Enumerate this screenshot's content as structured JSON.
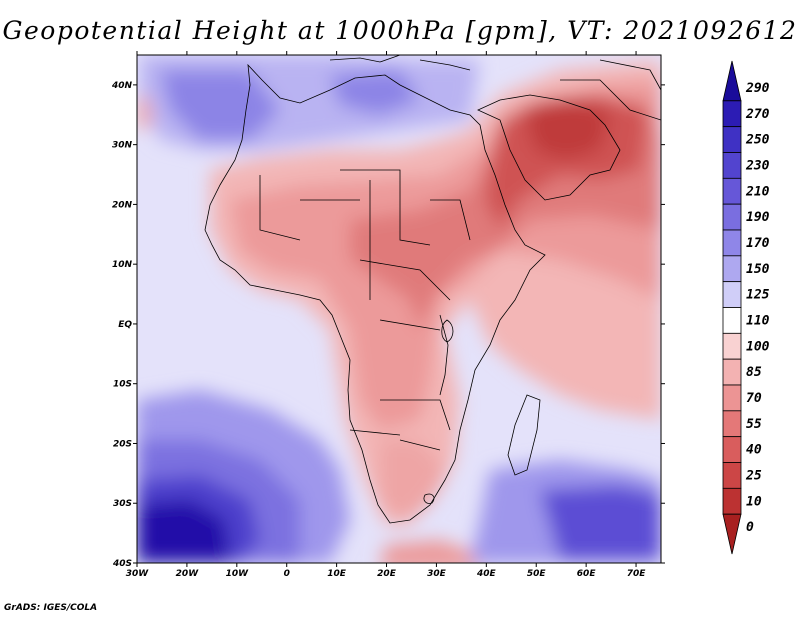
{
  "title": "Geopotential Height at 1000hPa [gpm], VT: 2021092612",
  "footer": "GrADS: IGES/COLA",
  "map": {
    "lon_ticks": [
      "30W",
      "20W",
      "10W",
      "0",
      "10E",
      "20E",
      "30E",
      "40E",
      "50E",
      "60E",
      "70E"
    ],
    "lat_ticks": [
      "40N",
      "30N",
      "20N",
      "10N",
      "EQ",
      "10S",
      "20S",
      "30S",
      "40S"
    ],
    "lon_range": [
      -30,
      75
    ],
    "lat_range": [
      -40,
      45
    ]
  },
  "colorbar": {
    "labels": [
      "290",
      "270",
      "250",
      "230",
      "210",
      "190",
      "170",
      "150",
      "125",
      "110",
      "100",
      "85",
      "70",
      "55",
      "40",
      "25",
      "10",
      "0"
    ],
    "colors": [
      "#1a0c9a",
      "#2c1cb4",
      "#3f31c4",
      "#5244cf",
      "#6657d8",
      "#7a6ee0",
      "#8f86e8",
      "#aea8f0",
      "#d0cef8",
      "#ffffff",
      "#f9d2d2",
      "#f3b2b2",
      "#ec9494",
      "#e47878",
      "#d95d5d",
      "#cc4646",
      "#bc3232",
      "#a82020"
    ]
  }
}
